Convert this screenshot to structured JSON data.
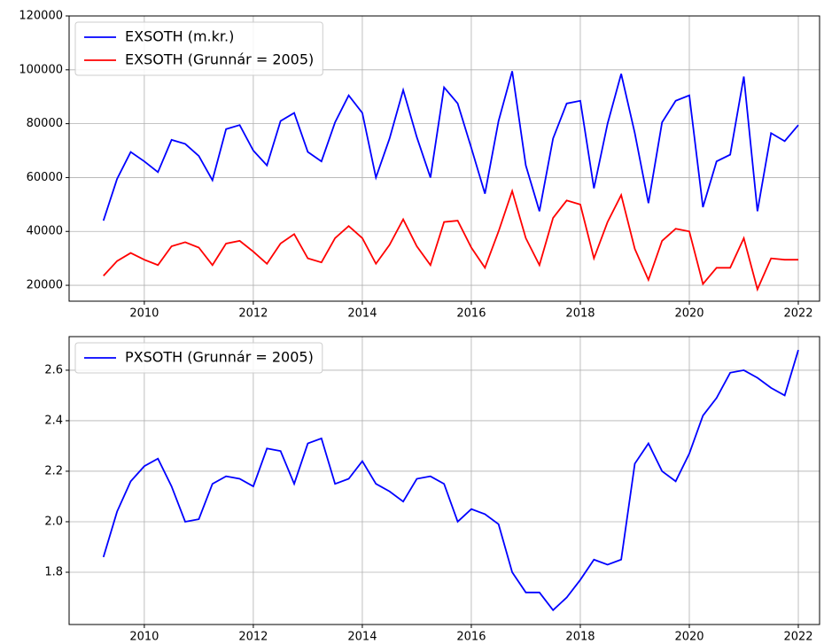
{
  "chart_data": [
    {
      "type": "line",
      "x": [
        2009.25,
        2009.5,
        2009.75,
        2010,
        2010.25,
        2010.5,
        2010.75,
        2011,
        2011.25,
        2011.5,
        2011.75,
        2012,
        2012.25,
        2012.5,
        2012.75,
        2013,
        2013.25,
        2013.5,
        2013.75,
        2014,
        2014.25,
        2014.5,
        2014.75,
        2015,
        2015.25,
        2015.5,
        2015.75,
        2016,
        2016.25,
        2016.5,
        2016.75,
        2017,
        2017.25,
        2017.5,
        2017.75,
        2018,
        2018.25,
        2018.5,
        2018.75,
        2019,
        2019.25,
        2019.5,
        2019.75,
        2020,
        2020.25,
        2020.5,
        2020.75,
        2021,
        2021.25,
        2021.5,
        2021.75,
        2022
      ],
      "series": [
        {
          "name": "EXSOTH (m.kr.)",
          "color": "#0000ff",
          "values": [
            44000,
            59500,
            69500,
            66000,
            62000,
            74000,
            72500,
            68000,
            59000,
            78000,
            79500,
            70000,
            64500,
            81000,
            84000,
            69500,
            66000,
            80500,
            90500,
            84000,
            60000,
            74500,
            92500,
            75000,
            60000,
            93500,
            87500,
            71000,
            54000,
            81000,
            99500,
            64500,
            47500,
            74500,
            87500,
            88500,
            56000,
            80000,
            98500,
            76500,
            50500,
            80500,
            88500,
            90500,
            49000,
            66000,
            68500,
            97500,
            47500,
            76500,
            73500,
            79500
          ]
        },
        {
          "name": "EXSOTH (Grunnár = 2005)",
          "color": "#ff0000",
          "values": [
            23500,
            29000,
            32000,
            29500,
            27500,
            34500,
            36000,
            34000,
            27500,
            35500,
            36500,
            32500,
            28000,
            35500,
            39000,
            30000,
            28500,
            37500,
            42000,
            37500,
            28000,
            35000,
            44500,
            34500,
            27500,
            43500,
            44000,
            34000,
            26500,
            40000,
            55000,
            37500,
            27500,
            45000,
            51500,
            50000,
            30000,
            43500,
            53500,
            33500,
            22000,
            36500,
            41000,
            40000,
            20500,
            26500,
            26500,
            37500,
            18500,
            30000,
            29500,
            29500
          ]
        }
      ],
      "xlim": [
        2008.62,
        2022.39
      ],
      "xticks": [
        2010,
        2012,
        2014,
        2016,
        2018,
        2020,
        2022
      ],
      "ylim": [
        14100,
        120000
      ],
      "yticks": [
        20000,
        40000,
        60000,
        80000,
        100000,
        120000
      ],
      "grid": true,
      "legend": "upper left"
    },
    {
      "type": "line",
      "x": [
        2009.25,
        2009.5,
        2009.75,
        2010,
        2010.25,
        2010.5,
        2010.75,
        2011,
        2011.25,
        2011.5,
        2011.75,
        2012,
        2012.25,
        2012.5,
        2012.75,
        2013,
        2013.25,
        2013.5,
        2013.75,
        2014,
        2014.25,
        2014.5,
        2014.75,
        2015,
        2015.25,
        2015.5,
        2015.75,
        2016,
        2016.25,
        2016.5,
        2016.75,
        2017,
        2017.25,
        2017.5,
        2017.75,
        2018,
        2018.25,
        2018.5,
        2018.75,
        2019,
        2019.25,
        2019.5,
        2019.75,
        2020,
        2020.25,
        2020.5,
        2020.75,
        2021,
        2021.25,
        2021.5,
        2021.75,
        2022
      ],
      "series": [
        {
          "name": "PXSOTH (Grunnár = 2005)",
          "color": "#0000ff",
          "values": [
            1.86,
            2.04,
            2.16,
            2.22,
            2.25,
            2.14,
            2.0,
            2.01,
            2.15,
            2.18,
            2.17,
            2.14,
            2.29,
            2.28,
            2.15,
            2.31,
            2.33,
            2.15,
            2.17,
            2.24,
            2.15,
            2.12,
            2.08,
            2.17,
            2.18,
            2.15,
            2.0,
            2.05,
            2.03,
            1.99,
            1.8,
            1.72,
            1.72,
            1.65,
            1.7,
            1.77,
            1.85,
            1.83,
            1.85,
            2.23,
            2.31,
            2.2,
            2.16,
            2.27,
            2.42,
            2.49,
            2.59,
            2.6,
            2.57,
            2.53,
            2.5,
            2.68
          ]
        }
      ],
      "xlim": [
        2008.62,
        2022.39
      ],
      "xticks": [
        2010,
        2012,
        2014,
        2016,
        2018,
        2020,
        2022
      ],
      "ylim": [
        1.593,
        2.733
      ],
      "yticks": [
        1.8,
        {
          "value": 2,
          "label": "2.0"
        },
        2.2,
        2.4,
        2.6
      ],
      "grid": true,
      "legend": "upper left"
    }
  ]
}
